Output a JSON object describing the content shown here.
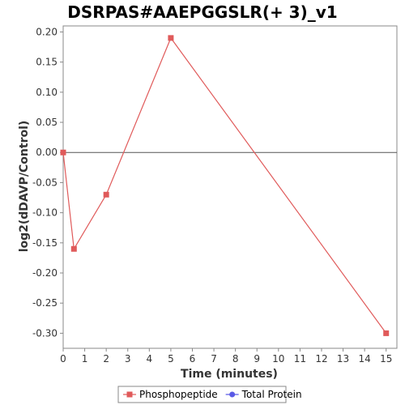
{
  "chart_data": {
    "type": "line",
    "title": "DSRPAS#AAEPGGSLR(+ 3)_v1",
    "xlabel": "Time (minutes)",
    "ylabel": "log2(dDAVP/Control)",
    "xlim": [
      0,
      15.5
    ],
    "ylim": [
      -0.325,
      0.21
    ],
    "x_ticks": [
      0,
      1,
      2,
      3,
      4,
      5,
      6,
      7,
      8,
      9,
      10,
      11,
      12,
      13,
      14,
      15
    ],
    "y_ticks": [
      -0.3,
      -0.25,
      -0.2,
      -0.15,
      -0.1,
      -0.05,
      0.0,
      0.05,
      0.1,
      0.15,
      0.2
    ],
    "grid": false,
    "zero_line": true,
    "legend_position": "bottom",
    "series": [
      {
        "name": "Phosphopeptide",
        "color": "#e05a5a",
        "marker": "square",
        "x": [
          0,
          0.5,
          2,
          5,
          15
        ],
        "y": [
          0.0,
          -0.16,
          -0.07,
          0.19,
          -0.3
        ]
      },
      {
        "name": "Total Protein",
        "color": "#5a5ae6",
        "marker": "circle",
        "x": [],
        "y": []
      }
    ]
  }
}
